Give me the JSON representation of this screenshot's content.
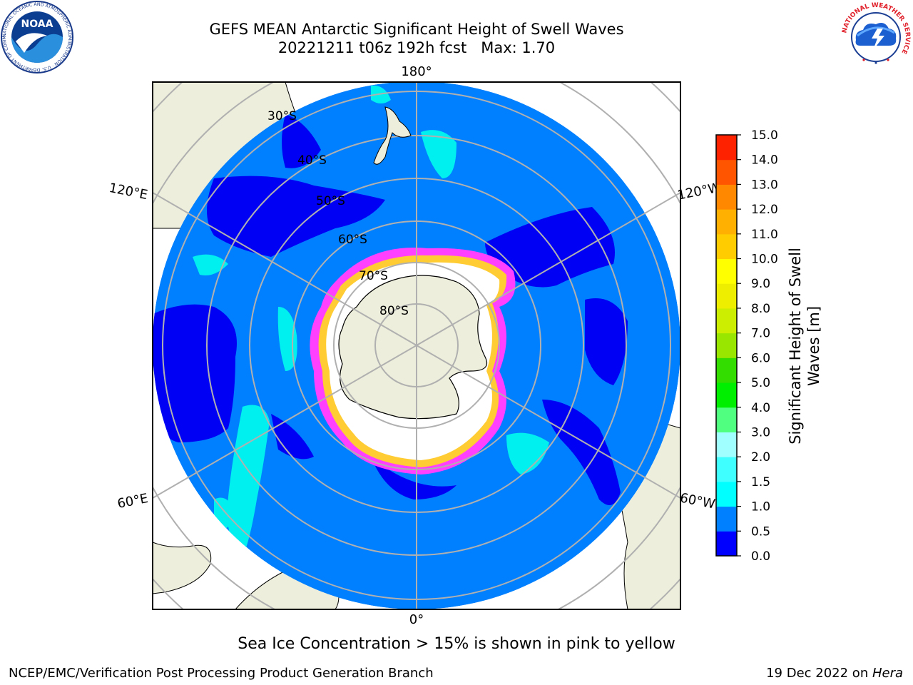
{
  "header": {
    "title_line1": "GEFS MEAN Antarctic Significant Height of Swell Waves",
    "title_line2": "20221211 t06z 192h fcst   Max: 1.70"
  },
  "logos": {
    "left": "noaa-logo",
    "right": "nws-logo",
    "noaa_text": "NOAA",
    "noaa_ring_text": "NATIONAL OCEANIC AND ATMOSPHERIC ADMINISTRATION · U.S. DEPARTMENT OF COMMERCE",
    "nws_ring_text": "NATIONAL WEATHER SERVICE"
  },
  "map": {
    "projection": "south polar stereographic",
    "longitude_labels": [
      "180°",
      "120°E",
      "120°W",
      "60°E",
      "60°W",
      "0°"
    ],
    "latitude_labels": [
      "30°S",
      "40°S",
      "50°S",
      "60°S",
      "70°S",
      "80°S"
    ],
    "colors": {
      "land": "#eeeedc",
      "ocean_low": "#0000f5",
      "ocean_mid": "#0080ff",
      "ocean_high": "#00f0f0",
      "ice_edge": "#ff40ff",
      "ice_yellow": "#ffcc33",
      "grid": "#b0b0b0"
    }
  },
  "colorbar": {
    "title_line1": "Significant Height of Swell",
    "title_line2": "Waves [m]",
    "ticks": [
      "0.0",
      "0.5",
      "1.0",
      "1.5",
      "2.0",
      "3.0",
      "4.0",
      "5.0",
      "6.0",
      "7.0",
      "8.0",
      "9.0",
      "10.0",
      "11.0",
      "12.0",
      "13.0",
      "14.0",
      "15.0"
    ],
    "colors": [
      "#0000ff",
      "#0080ff",
      "#00ffff",
      "#40ffff",
      "#a0ffff",
      "#50ff80",
      "#00ee00",
      "#33dd00",
      "#99e600",
      "#ccee00",
      "#eeee00",
      "#ffff00",
      "#ffcc00",
      "#ffb000",
      "#ff8800",
      "#ff5500",
      "#ff2200"
    ]
  },
  "footer": {
    "subtitle": "Sea Ice Concentration > 15% is shown in pink to yellow",
    "credit": "NCEP/EMC/Verification Post Processing Product Generation Branch",
    "date_prefix": "19 Dec 2022 on ",
    "date_machine": "Hera"
  }
}
